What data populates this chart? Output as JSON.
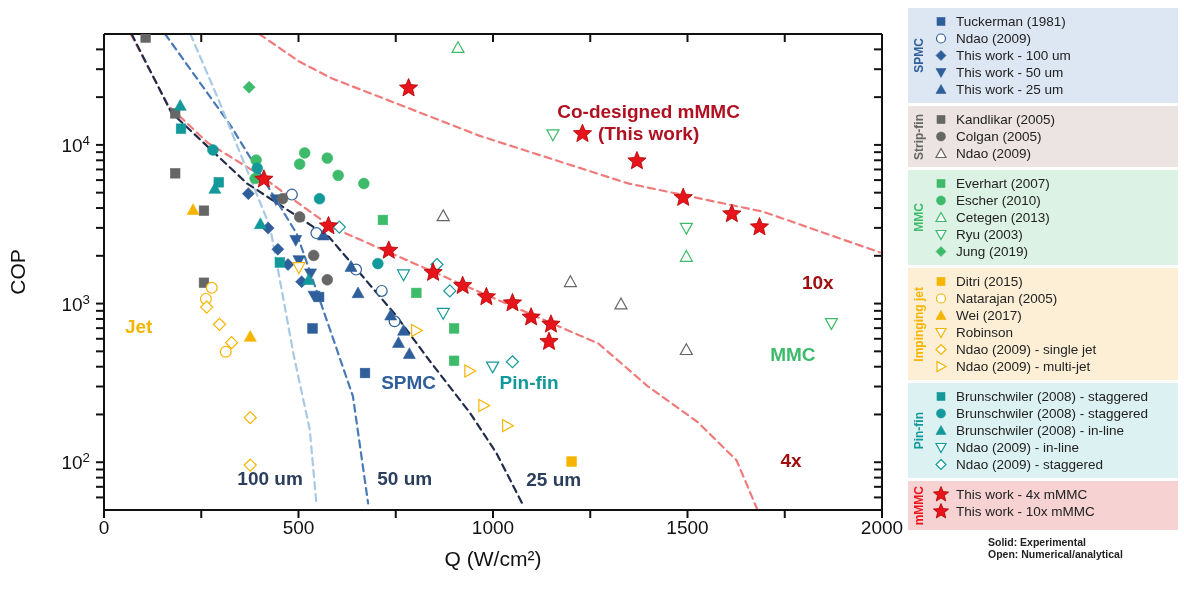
{
  "chart_data": {
    "type": "scatter",
    "xlabel": "Q (W/cm²)",
    "ylabel": "COP",
    "log": "y",
    "grid": false,
    "legend": "right",
    "xlim": [
      0,
      2000
    ],
    "xticks": [
      0,
      {
        "value": 250,
        "label": null
      },
      500,
      {
        "value": 750,
        "label": null
      },
      1000,
      {
        "value": 1250,
        "label": null
      },
      1500,
      {
        "value": 1750,
        "label": null
      },
      2000
    ],
    "ylim": [
      50,
      50000
    ],
    "yticks": [
      {
        "value": 60,
        "label": null
      },
      {
        "value": 70,
        "label": null
      },
      {
        "value": 80,
        "label": null
      },
      {
        "value": 90,
        "label": null
      },
      {
        "value": 100,
        "label": "10$^{2}$"
      },
      {
        "value": 200,
        "label": null
      },
      {
        "value": 300,
        "label": null
      },
      {
        "value": 400,
        "label": null
      },
      {
        "value": 500,
        "label": null
      },
      {
        "value": 600,
        "label": null
      },
      {
        "value": 700,
        "label": null
      },
      {
        "value": 800,
        "label": null
      },
      {
        "value": 900,
        "label": null
      },
      {
        "value": 1000,
        "label": "10$^{3}$"
      },
      {
        "value": 2000,
        "label": null
      },
      {
        "value": 3000,
        "label": null
      },
      {
        "value": 4000,
        "label": null
      },
      {
        "value": 5000,
        "label": null
      },
      {
        "value": 6000,
        "label": null
      },
      {
        "value": 7000,
        "label": null
      },
      {
        "value": 8000,
        "label": null
      },
      {
        "value": 9000,
        "label": null
      },
      {
        "value": 10000,
        "label": "10$^{4}$"
      },
      {
        "value": 20000,
        "label": null
      },
      {
        "value": 30000,
        "label": null
      },
      {
        "value": 40000,
        "label": null
      }
    ],
    "series": [
      {
        "name": "Tuckerman (1981)",
        "color": "#2f5f9a",
        "marker": "square",
        "x": [
          553,
          536,
          671
        ],
        "values": [
          1100,
          697,
          365
        ]
      },
      {
        "name": "Ndao (2009)",
        "color": "#2f5f9a",
        "marker": "circle-open",
        "x": [
          483,
          546,
          648,
          714,
          747
        ],
        "values": [
          4860,
          2780,
          1637,
          1202,
          773
        ]
      },
      {
        "name": "This work - 100 um",
        "color": "#2f5f9a",
        "marker": "diamond",
        "x": [
          371,
          422,
          447,
          473,
          508
        ],
        "values": [
          4930,
          2990,
          2200,
          1762,
          1372
        ]
      },
      {
        "name": "This work - 50 um",
        "color": "#2f5f9a",
        "marker": "triangle-down",
        "x": [
          442,
          493,
          501,
          531,
          540
        ],
        "values": [
          4520,
          2506,
          1870,
          1543,
          1117
        ]
      },
      {
        "name": "This work - 25 um",
        "color": "#2f5f9a",
        "marker": "triangle",
        "x": [
          564,
          635,
          653,
          737,
          770,
          757,
          785
        ],
        "values": [
          2700,
          1710,
          1167,
          845,
          677,
          567,
          483
        ]
      },
      {
        "name": "Kandlikar (2005)",
        "color": "#666666",
        "marker": "square",
        "x": [
          107,
          183,
          183,
          257,
          257
        ],
        "values": [
          47500,
          15800,
          6620,
          3850,
          1353
        ]
      },
      {
        "name": "Colgan (2005)",
        "color": "#666666",
        "marker": "circle",
        "x": [
          459,
          503,
          539,
          574
        ],
        "values": [
          4580,
          3515,
          2010,
          1413
        ]
      },
      {
        "name": "Ndao (2009)",
        "color": "#666666",
        "marker": "triangle-open",
        "x": [
          872,
          1199,
          1329,
          1497
        ],
        "values": [
          3570,
          1372,
          993,
          512
        ]
      },
      {
        "name": "Everhart (2007)",
        "color": "#3dbb6a",
        "marker": "square",
        "x": [
          717,
          803,
          900,
          900
        ],
        "values": [
          3365,
          1167,
          697,
          436
        ]
      },
      {
        "name": "Escher (2010)",
        "color": "#3dbb6a",
        "marker": "circle",
        "x": [
          391,
          389,
          503,
          516,
          574,
          602,
          668
        ],
        "values": [
          8020,
          6150,
          7570,
          8900,
          8260,
          6430,
          5710
        ]
      },
      {
        "name": "Cetegen (2013)",
        "color": "#3dbb6a",
        "marker": "triangle-open",
        "x": [
          910,
          1497
        ],
        "values": [
          41000,
          1980
        ]
      },
      {
        "name": "Ryu (2003)",
        "color": "#3dbb6a",
        "marker": "triangle-down-open",
        "x": [
          1154,
          1497,
          1870
        ],
        "values": [
          11600,
          2990,
          750
        ]
      },
      {
        "name": "Jung (2019)",
        "color": "#3dbb6a",
        "marker": "diamond",
        "x": [
          373
        ],
        "values": [
          23100
        ]
      },
      {
        "name": "Ditri (2015)",
        "color": "#f5b400",
        "marker": "square",
        "x": [
          1202
        ],
        "values": [
          101
        ]
      },
      {
        "name": "Natarajan (2005)",
        "color": "#f5b400",
        "marker": "circle-open",
        "x": [
          277,
          262,
          313
        ],
        "values": [
          1256,
          1070,
          497
        ]
      },
      {
        "name": "Wei (2017)",
        "color": "#f5b400",
        "marker": "triangle",
        "x": [
          229,
          376
        ],
        "values": [
          3900,
          620
        ]
      },
      {
        "name": "Robinson",
        "color": "#f5b400",
        "marker": "triangle-down-open",
        "x": [
          501
        ],
        "values": [
          1688
        ]
      },
      {
        "name": "Ndao (2009) - single jet",
        "color": "#f5b400",
        "marker": "diamond-open",
        "x": [
          264,
          297,
          328,
          376,
          376
        ],
        "values": [
          950,
          740,
          567,
          191,
          96
        ]
      },
      {
        "name": "Ndao (2009) - multi-jet",
        "color": "#f5b400",
        "marker": "triangle-right-open",
        "x": [
          803,
          940,
          976,
          1037
        ],
        "values": [
          677,
          376,
          228,
          170
        ]
      },
      {
        "name": "Brunschwiler (2008) - staggered",
        "color": "#13999a",
        "marker": "square",
        "x": [
          198,
          295,
          452
        ],
        "values": [
          12650,
          5810,
          1815
        ]
      },
      {
        "name": "Brunschwiler (2008) - staggered",
        "color": "#13999a",
        "marker": "circle",
        "x": [
          280,
          394,
          554,
          704
        ],
        "values": [
          9290,
          7130,
          4580,
          1787
        ]
      },
      {
        "name": "Brunschwiler (2008) - in-line",
        "color": "#13999a",
        "marker": "triangle",
        "x": [
          196,
          285,
          402,
          526
        ],
        "values": [
          17700,
          5310,
          3180,
          1413
        ]
      },
      {
        "name": "Ndao (2009) - in-line",
        "color": "#13999a",
        "marker": "triangle-down-open",
        "x": [
          770,
          872,
          999
        ],
        "values": [
          1520,
          869,
          399
        ]
      },
      {
        "name": "Ndao (2009) - staggered",
        "color": "#13999a",
        "marker": "diamond-open",
        "x": [
          605,
          856,
          889,
          1050
        ],
        "values": [
          3035,
          1762,
          1202,
          430
        ]
      },
      {
        "name": "This work - 4x mMMC",
        "color": "#e8141b",
        "marker": "star",
        "x": [
          411,
          577,
          732,
          846,
          922,
          983,
          1050,
          1098,
          1149,
          1144
        ],
        "values": [
          6070,
          3080,
          2160,
          1567,
          1295,
          1101,
          1007,
          820,
          740,
          575
        ]
      },
      {
        "name": "This work - 10x mMMC",
        "color": "#e8141b",
        "marker": "star",
        "x": [
          783,
          1230,
          1370,
          1489,
          1614,
          1685
        ],
        "values": [
          22800,
          11750,
          7910,
          4650,
          3670,
          3035
        ]
      },
      {
        "type": "line",
        "color": "#f07a7a",
        "line_style": "dashed",
        "marker": "none",
        "x": [
          399,
          503,
          585,
          966,
          1347,
          1695,
          1995
        ],
        "values": [
          50000,
          33400,
          26300,
          11400,
          5720,
          3790,
          2100
        ]
      },
      {
        "type": "line",
        "color": "#f07a7a",
        "line_style": "dashed",
        "marker": "none",
        "x": [
          69,
          165,
          267,
          394,
          585,
          923,
          1271,
          1398,
          1525,
          1626,
          1680
        ],
        "values": [
          50000,
          17700,
          10300,
          6620,
          3030,
          1312,
          560,
          301,
          180,
          103,
          50
        ]
      },
      {
        "type": "line",
        "color": "#1f2d4a",
        "line_style": "dashed",
        "marker": "none",
        "x": [
          71,
          173,
          368,
          579,
          750,
          839,
          940,
          1009,
          1075
        ],
        "values": [
          50000,
          16000,
          5710,
          2620,
          845,
          430,
          206,
          114,
          55
        ]
      },
      {
        "type": "line",
        "color": "#4a7ab5",
        "line_style": "dashed",
        "marker": "none",
        "x": [
          157,
          326,
          496,
          580,
          640,
          679
        ],
        "values": [
          50000,
          13200,
          2740,
          697,
          260,
          55
        ]
      },
      {
        "type": "line",
        "color": "#a8c8e6",
        "line_style": "dashed",
        "marker": "none",
        "x": [
          222,
          292,
          427,
          488,
          529,
          546
        ],
        "values": [
          50000,
          19900,
          3030,
          469,
          160,
          55
        ]
      }
    ],
    "annotations": [
      "Jet",
      "SPMC",
      "Pin-fin",
      "MMC",
      "Co-designed mMMC\n(This work)",
      "100 um",
      "50 um",
      "25 um",
      "4x",
      "10x",
      "SPMC",
      "Strip-fin",
      "MMC",
      "Impinging jet",
      "Pin-fin",
      "mMMC",
      "Solid: Experimental",
      "Open: Numerical/analytical"
    ]
  }
}
